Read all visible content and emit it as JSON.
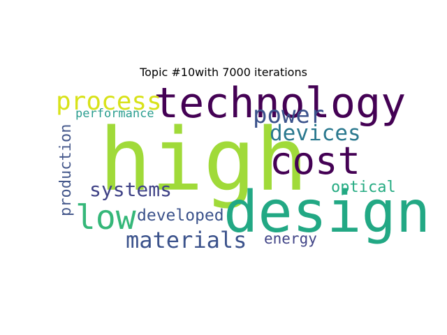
{
  "chart_data": {
    "type": "wordcloud",
    "title": "Topic #10with 7000 iterations",
    "words": [
      {
        "text": "high",
        "color": "#a0da39"
      },
      {
        "text": "design",
        "color": "#22a884"
      },
      {
        "text": "technology",
        "color": "#440154"
      },
      {
        "text": "cost",
        "color": "#440154"
      },
      {
        "text": "low",
        "color": "#35b779"
      },
      {
        "text": "process",
        "color": "#d8e219"
      },
      {
        "text": "power",
        "color": "#3b528b"
      },
      {
        "text": "devices",
        "color": "#2a788e"
      },
      {
        "text": "materials",
        "color": "#3b528b"
      },
      {
        "text": "systems",
        "color": "#404387"
      },
      {
        "text": "developed",
        "color": "#3b528b"
      },
      {
        "text": "production",
        "color": "#46598c"
      },
      {
        "text": "optical",
        "color": "#25ab82"
      },
      {
        "text": "energy",
        "color": "#414487"
      },
      {
        "text": "performance",
        "color": "#2a9d8f"
      }
    ]
  }
}
